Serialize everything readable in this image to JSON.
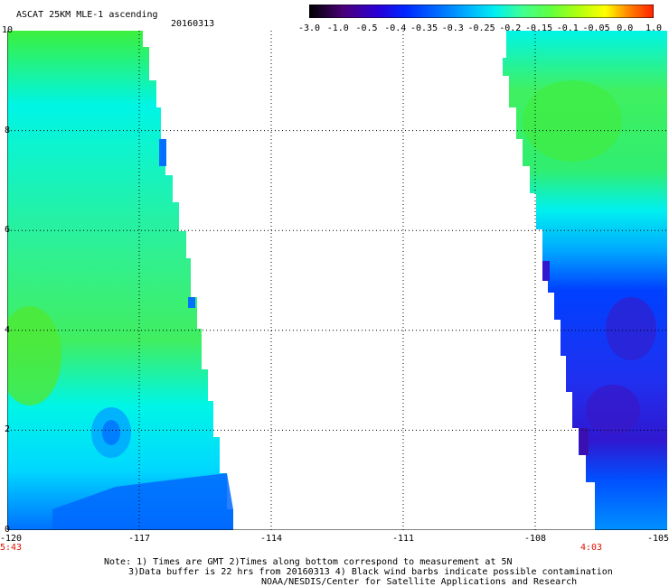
{
  "header": {
    "title": "ASCAT 25KM MLE-1 ascending",
    "date": "20160313"
  },
  "colorbar": {
    "labels": [
      "-3.0",
      "-1.0",
      "-0.5",
      "-0.4",
      "-0.35",
      "-0.3",
      "-0.25",
      "-0.2",
      "-0.15",
      "-0.1",
      "-0.05",
      "0.0",
      "1.0"
    ],
    "colors": [
      "#000000",
      "#4b007a",
      "#2a00d8",
      "#0028ff",
      "#0070ff",
      "#00b0ff",
      "#00f0f0",
      "#40ff90",
      "#60ff40",
      "#b0ff10",
      "#ffff00",
      "#ff8000",
      "#ff2000"
    ]
  },
  "map": {
    "x_ticks": [
      "-120",
      "-117",
      "-114",
      "-111",
      "-108",
      "-105"
    ],
    "y_ticks": [
      "0",
      "2",
      "4",
      "6",
      "8",
      "10"
    ],
    "xlim": [
      -120,
      -105
    ],
    "ylim": [
      0,
      10
    ],
    "grid": true,
    "time_left": "5:43",
    "time_right": "4:03",
    "colors": {
      "green": "#3cf03c",
      "cyan": "#00f5e6",
      "lightblue": "#00c8ff",
      "blue": "#0050ff",
      "deepblue": "#1e2cff",
      "violet": "#3c18d8"
    }
  },
  "notes": {
    "line1": "Note: 1) Times are GMT 2)Times along bottom correspond to measurement at 5N",
    "line2": "3)Data buffer is 22 hrs from 20160313 4) Black wind barbs indicate possible contamination",
    "line3": "NOAA/NESDIS/Center for Satellite Applications and Research"
  }
}
